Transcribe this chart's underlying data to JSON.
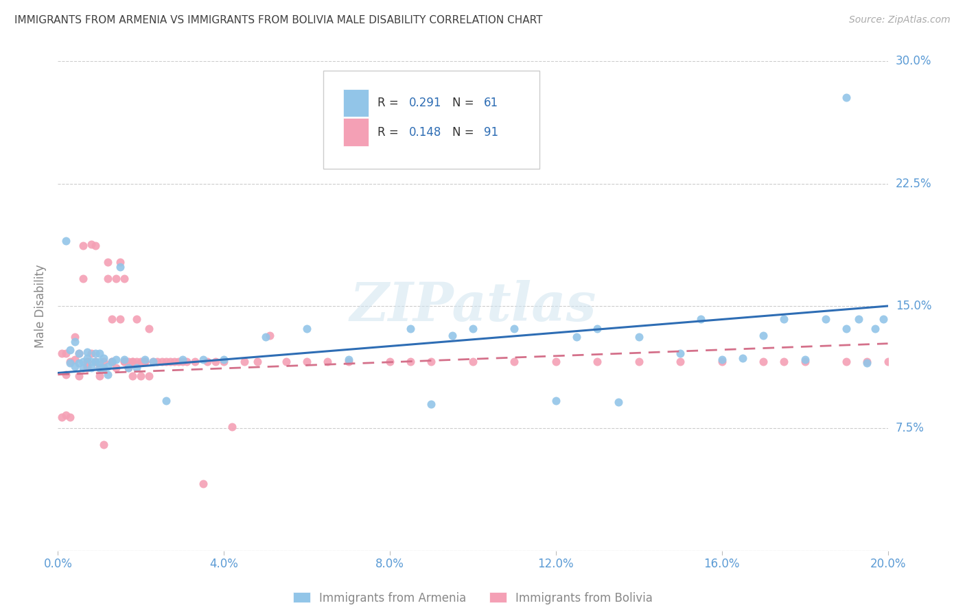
{
  "title": "IMMIGRANTS FROM ARMENIA VS IMMIGRANTS FROM BOLIVIA MALE DISABILITY CORRELATION CHART",
  "source": "Source: ZipAtlas.com",
  "ylabel": "Male Disability",
  "legend_label1": "Immigrants from Armenia",
  "legend_label2": "Immigrants from Bolivia",
  "R1": 0.291,
  "N1": 61,
  "R2": 0.148,
  "N2": 91,
  "color1": "#92C5E8",
  "color2": "#F4A0B5",
  "trend_color1": "#2E6DB4",
  "trend_color2": "#D4708A",
  "xlim": [
    0.0,
    0.2
  ],
  "ylim": [
    0.0,
    0.3
  ],
  "ytick_vals": [
    0.0,
    0.075,
    0.15,
    0.225,
    0.3
  ],
  "xtick_vals": [
    0.0,
    0.04,
    0.08,
    0.12,
    0.16,
    0.2
  ],
  "watermark": "ZIPatlas",
  "background_color": "#FFFFFF",
  "grid_color": "#CCCCCC",
  "axis_label_color": "#5B9BD5",
  "title_color": "#404040",
  "trend1_x0": 0.0,
  "trend1_y0": 0.109,
  "trend1_x1": 0.2,
  "trend1_y1": 0.15,
  "trend2_x0": 0.0,
  "trend2_y0": 0.108,
  "trend2_x1": 0.2,
  "trend2_y1": 0.127,
  "scatter1_x": [
    0.002,
    0.003,
    0.003,
    0.004,
    0.004,
    0.005,
    0.005,
    0.006,
    0.006,
    0.007,
    0.007,
    0.008,
    0.008,
    0.009,
    0.009,
    0.01,
    0.01,
    0.01,
    0.011,
    0.011,
    0.012,
    0.012,
    0.013,
    0.014,
    0.015,
    0.016,
    0.017,
    0.019,
    0.021,
    0.023,
    0.026,
    0.03,
    0.035,
    0.04,
    0.05,
    0.06,
    0.07,
    0.085,
    0.09,
    0.095,
    0.1,
    0.11,
    0.12,
    0.125,
    0.13,
    0.135,
    0.14,
    0.15,
    0.155,
    0.16,
    0.165,
    0.17,
    0.175,
    0.18,
    0.185,
    0.19,
    0.19,
    0.193,
    0.195,
    0.197,
    0.199
  ],
  "scatter1_y": [
    0.19,
    0.123,
    0.115,
    0.113,
    0.128,
    0.121,
    0.115,
    0.116,
    0.112,
    0.118,
    0.122,
    0.116,
    0.112,
    0.121,
    0.116,
    0.116,
    0.112,
    0.121,
    0.112,
    0.118,
    0.108,
    0.113,
    0.116,
    0.117,
    0.174,
    0.117,
    0.112,
    0.112,
    0.117,
    0.116,
    0.092,
    0.117,
    0.117,
    0.117,
    0.131,
    0.136,
    0.117,
    0.136,
    0.09,
    0.132,
    0.136,
    0.136,
    0.092,
    0.131,
    0.136,
    0.091,
    0.131,
    0.121,
    0.142,
    0.117,
    0.118,
    0.132,
    0.142,
    0.117,
    0.142,
    0.278,
    0.136,
    0.142,
    0.115,
    0.136,
    0.142
  ],
  "scatter2_x": [
    0.001,
    0.001,
    0.002,
    0.002,
    0.002,
    0.003,
    0.003,
    0.004,
    0.004,
    0.005,
    0.005,
    0.006,
    0.006,
    0.007,
    0.007,
    0.007,
    0.007,
    0.008,
    0.008,
    0.009,
    0.009,
    0.009,
    0.01,
    0.01,
    0.01,
    0.011,
    0.011,
    0.011,
    0.012,
    0.012,
    0.013,
    0.013,
    0.013,
    0.014,
    0.014,
    0.015,
    0.015,
    0.016,
    0.016,
    0.016,
    0.017,
    0.017,
    0.018,
    0.018,
    0.018,
    0.019,
    0.019,
    0.02,
    0.02,
    0.021,
    0.021,
    0.022,
    0.022,
    0.023,
    0.024,
    0.025,
    0.026,
    0.027,
    0.028,
    0.029,
    0.03,
    0.031,
    0.033,
    0.035,
    0.036,
    0.038,
    0.04,
    0.042,
    0.045,
    0.048,
    0.051,
    0.055,
    0.06,
    0.065,
    0.07,
    0.08,
    0.085,
    0.09,
    0.1,
    0.11,
    0.12,
    0.13,
    0.14,
    0.15,
    0.16,
    0.17,
    0.175,
    0.18,
    0.19,
    0.195,
    0.2
  ],
  "scatter2_y": [
    0.121,
    0.082,
    0.121,
    0.108,
    0.083,
    0.116,
    0.082,
    0.117,
    0.131,
    0.121,
    0.107,
    0.187,
    0.167,
    0.116,
    0.116,
    0.113,
    0.112,
    0.188,
    0.121,
    0.116,
    0.187,
    0.116,
    0.112,
    0.112,
    0.107,
    0.116,
    0.112,
    0.065,
    0.177,
    0.167,
    0.116,
    0.116,
    0.142,
    0.167,
    0.112,
    0.142,
    0.177,
    0.116,
    0.167,
    0.116,
    0.116,
    0.112,
    0.116,
    0.107,
    0.116,
    0.142,
    0.116,
    0.116,
    0.107,
    0.116,
    0.116,
    0.136,
    0.107,
    0.116,
    0.116,
    0.116,
    0.116,
    0.116,
    0.116,
    0.116,
    0.116,
    0.116,
    0.116,
    0.041,
    0.116,
    0.116,
    0.116,
    0.076,
    0.116,
    0.116,
    0.132,
    0.116,
    0.116,
    0.116,
    0.116,
    0.116,
    0.116,
    0.116,
    0.116,
    0.116,
    0.116,
    0.116,
    0.116,
    0.116,
    0.116,
    0.116,
    0.116,
    0.116,
    0.116,
    0.116,
    0.116
  ]
}
